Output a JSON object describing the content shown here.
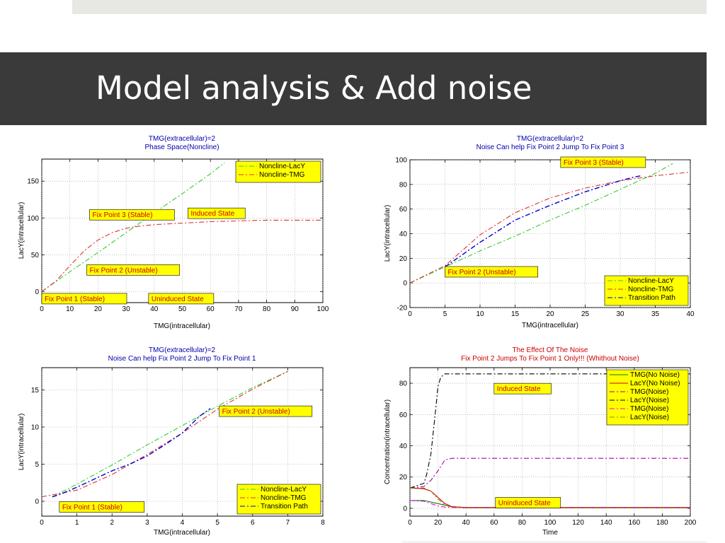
{
  "slide": {
    "title": "Model analysis & Add noise"
  },
  "colors": {
    "title_band": "#3a3a3a",
    "top_bar": "#e7e8e3",
    "chart_title": "#0000aa",
    "chart_title_red": "#cc0000",
    "plot_bg": "#ffffff",
    "annotation_bg": "#ffff00",
    "annotation_text": "#cc0000"
  },
  "chart_data": [
    {
      "type": "line",
      "title": "TMG(extracellular)=2",
      "subtitle": "Phase Space(Noncline)",
      "xlabel": "TMG(intracellular)",
      "ylabel": "LacY(intracellular)",
      "xlim": [
        0,
        100
      ],
      "ylim": [
        -15,
        180
      ],
      "xticks": [
        0,
        10,
        20,
        30,
        40,
        50,
        60,
        70,
        80,
        90,
        100
      ],
      "yticks": [
        0,
        50,
        100,
        150
      ],
      "grid": true,
      "legend_position": "top-right",
      "legend": [
        "Noncline-LacY",
        "Noncline-TMG"
      ],
      "series": [
        {
          "name": "Noncline-LacY",
          "color": "#33cc33",
          "dash": "dashdot",
          "x": [
            0,
            10,
            20,
            30,
            40,
            50,
            60,
            65
          ],
          "y": [
            0,
            27,
            53,
            80,
            107,
            133,
            160,
            175
          ]
        },
        {
          "name": "Noncline-TMG",
          "color": "#dd3333",
          "dash": "dashdot",
          "x": [
            0,
            5,
            10,
            15,
            20,
            25,
            30,
            35,
            40,
            50,
            60,
            70,
            80,
            90,
            100
          ],
          "y": [
            0,
            14,
            35,
            55,
            70,
            80,
            86,
            89,
            91,
            93,
            95,
            96,
            97,
            97,
            97
          ]
        }
      ],
      "annotations": [
        {
          "text": "Fix Point 3 (Stable)",
          "x": 17,
          "y": 101
        },
        {
          "text": "Induced State",
          "x": 52,
          "y": 103
        },
        {
          "text": "Fix Point 2 (Unstable)",
          "x": 16,
          "y": 26
        },
        {
          "text": "Fix Point 1 (Stable)",
          "x": 0,
          "y": -13
        },
        {
          "text": "Uninduced State",
          "x": 38,
          "y": -13
        }
      ]
    },
    {
      "type": "line",
      "title": "TMG(extracellular)=2",
      "subtitle": "Noise Can help Fix Point 2 Jump To Fix Point 3",
      "xlabel": "TMG(intracellular)",
      "ylabel": "LacY(intracellular)",
      "xlim": [
        0,
        40
      ],
      "ylim": [
        -20,
        100
      ],
      "xticks": [
        0,
        5,
        10,
        15,
        20,
        25,
        30,
        35,
        40
      ],
      "yticks": [
        -20,
        0,
        20,
        40,
        60,
        80,
        100
      ],
      "grid": true,
      "legend_position": "bottom-right",
      "legend": [
        "Noncline-LacY",
        "Noncline-TMG",
        "Transition Path"
      ],
      "series": [
        {
          "name": "Noncline-LacY",
          "color": "#33cc33",
          "dash": "dashdot",
          "x": [
            0,
            5,
            10,
            15,
            20,
            25,
            30,
            35,
            37.5
          ],
          "y": [
            0,
            13,
            26,
            38,
            51,
            63,
            76,
            89,
            97
          ]
        },
        {
          "name": "Noncline-TMG",
          "color": "#dd3333",
          "dash": "dashdot",
          "x": [
            0,
            5,
            10,
            15,
            20,
            25,
            30,
            35,
            40
          ],
          "y": [
            0,
            14,
            39,
            57,
            69,
            77,
            83,
            87,
            90
          ]
        },
        {
          "name": "Transition Path",
          "color": "#0000cc",
          "dash": "dashdot",
          "x": [
            5,
            7,
            10,
            15,
            20,
            25,
            30,
            32,
            33
          ],
          "y": [
            13,
            21,
            33,
            51,
            63,
            74,
            83,
            86,
            87
          ]
        }
      ],
      "annotations": [
        {
          "text": "Fix Point 3 (Stable)",
          "x": 21.5,
          "y": 96
        },
        {
          "text": "Fix Point 2 (Unstable)",
          "x": 5,
          "y": 7
        }
      ]
    },
    {
      "type": "line",
      "title": "TMG(extracellular)=2",
      "subtitle": "Noise Can help Fix Point 2 Jump To Fix Point 1",
      "xlabel": "TMG(intracellular)",
      "ylabel": "LacY(intracellular)",
      "xlim": [
        0,
        8
      ],
      "ylim": [
        -2,
        18
      ],
      "xticks": [
        0,
        1,
        2,
        3,
        4,
        5,
        6,
        7,
        8
      ],
      "yticks": [
        0,
        5,
        10,
        15
      ],
      "grid": true,
      "legend_position": "bottom-right",
      "legend": [
        "Noncline-LacY",
        "Noncline-TMG",
        "Transition Path"
      ],
      "series": [
        {
          "name": "Noncline-LacY",
          "color": "#33cc33",
          "dash": "dashdot",
          "x": [
            0.3,
            1,
            2,
            3,
            4,
            5,
            6,
            7
          ],
          "y": [
            0.6,
            2.3,
            4.9,
            7.6,
            10.2,
            12.8,
            15.3,
            17.5
          ]
        },
        {
          "name": "Noncline-TMG",
          "color": "#dd3333",
          "dash": "dashdot",
          "x": [
            0,
            1,
            2,
            3,
            4,
            5,
            6,
            7
          ],
          "y": [
            0.6,
            1.5,
            3.6,
            6.3,
            9.2,
            12.4,
            15.1,
            17.5
          ]
        },
        {
          "name": "Transition Path",
          "color": "#0000cc",
          "dash": "dashdot",
          "x": [
            0.3,
            0.5,
            1,
            1.5,
            2,
            2.5,
            3,
            3.5,
            4,
            4.5,
            4.8
          ],
          "y": [
            0.6,
            0.9,
            1.9,
            3.0,
            4.1,
            5.0,
            6.1,
            7.6,
            9.2,
            11.5,
            12.5
          ]
        }
      ],
      "annotations": [
        {
          "text": "Fix Point 2 (Unstable)",
          "x": 5.05,
          "y": 11.8
        },
        {
          "text": "Fix Point 1 (Stable)",
          "x": 0.5,
          "y": -1.1
        }
      ]
    },
    {
      "type": "line",
      "title": "The Effect Of The Noise",
      "subtitle": "Fix Point 2 Jumps To Fix Point 1 Only!!! (Whithout Noise)",
      "xlabel": "Time",
      "ylabel": "Concentration(intracellular)",
      "xlim": [
        0,
        200
      ],
      "ylim": [
        -5,
        90
      ],
      "xticks": [
        0,
        20,
        40,
        60,
        80,
        100,
        120,
        140,
        160,
        180,
        200
      ],
      "yticks": [
        0,
        20,
        40,
        60,
        80
      ],
      "grid": true,
      "legend_position": "top-right",
      "legend": [
        "TMG(No Noise)",
        "LacY(No Noise)",
        "TMG(Noise)",
        "LacY(Noise)",
        "TMG(Noise)",
        "LacY(Noise)"
      ],
      "series": [
        {
          "name": "TMG(No Noise)",
          "color": "#008000",
          "dash": "solid",
          "x": [
            0,
            10,
            20,
            30,
            40,
            200
          ],
          "y": [
            5,
            5,
            3,
            1,
            0.5,
            0.5
          ]
        },
        {
          "name": "LacY(No Noise)",
          "color": "#cc0000",
          "dash": "solid",
          "x": [
            0,
            10,
            15,
            20,
            25,
            30,
            40,
            200
          ],
          "y": [
            13,
            12.5,
            11,
            7,
            3,
            1,
            0.5,
            0.5
          ]
        },
        {
          "name": "TMG(Noise)",
          "color": "#aa00aa",
          "dash": "dashdot",
          "x": [
            0,
            10,
            15,
            20,
            25,
            30,
            40,
            60,
            100,
            140,
            200
          ],
          "y": [
            13,
            14,
            18,
            24,
            31,
            32,
            32,
            32,
            32,
            32,
            32
          ]
        },
        {
          "name": "LacY(Noise)",
          "color": "#000000",
          "dash": "dashdot",
          "x": [
            0,
            10,
            12,
            15,
            18,
            20,
            22,
            25,
            30,
            40,
            60,
            100,
            140,
            200
          ],
          "y": [
            13,
            16,
            22,
            35,
            60,
            78,
            84,
            86,
            86,
            86,
            86,
            86,
            86,
            86
          ]
        },
        {
          "name": "TMG(Noise)",
          "color": "#ff00ff",
          "dash": "dashdot",
          "x": [
            0,
            10,
            15,
            20,
            25,
            30,
            40,
            200
          ],
          "y": [
            5,
            4.5,
            3,
            1.5,
            0.8,
            0.5,
            0.3,
            0.3
          ]
        },
        {
          "name": "LacY(Noise)",
          "color": "#888800",
          "dash": "dashdot",
          "x": [
            0,
            10,
            15,
            20,
            25,
            30,
            40,
            200
          ],
          "y": [
            13,
            13,
            11,
            6,
            2,
            0.8,
            0.3,
            0.3
          ]
        }
      ],
      "annotations": [
        {
          "text": "Induced State",
          "x": 60,
          "y": 75
        },
        {
          "text": "Uninduced State",
          "x": 61,
          "y": 2
        }
      ]
    }
  ]
}
